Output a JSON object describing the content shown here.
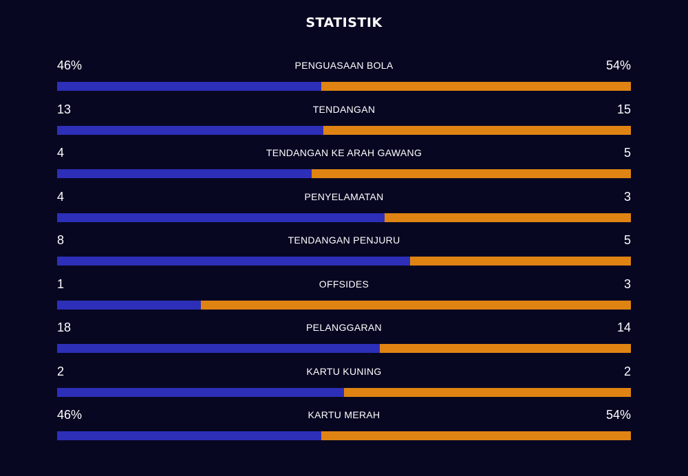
{
  "title": "STATISTIK",
  "colors": {
    "background": "#070722",
    "home": "#2d2fb8",
    "away": "#df8413"
  },
  "stats": [
    {
      "label": "PENGUASAAN BOLA",
      "home": "46%",
      "away": "54%",
      "home_share": 0.46
    },
    {
      "label": "TENDANGAN",
      "home": "13",
      "away": "15",
      "home_share": 0.464
    },
    {
      "label": "TENDANGAN KE ARAH GAWANG",
      "home": "4",
      "away": "5",
      "home_share": 0.444
    },
    {
      "label": "PENYELAMATAN",
      "home": "4",
      "away": "3",
      "home_share": 0.571
    },
    {
      "label": "TENDANGAN PENJURU",
      "home": "8",
      "away": "5",
      "home_share": 0.615
    },
    {
      "label": "OFFSIDES",
      "home": "1",
      "away": "3",
      "home_share": 0.25
    },
    {
      "label": "PELANGGARAN",
      "home": "18",
      "away": "14",
      "home_share": 0.5625
    },
    {
      "label": "KARTU KUNING",
      "home": "2",
      "away": "2",
      "home_share": 0.5
    },
    {
      "label": "KARTU MERAH",
      "home": "46%",
      "away": "54%",
      "home_share": 0.46
    }
  ]
}
